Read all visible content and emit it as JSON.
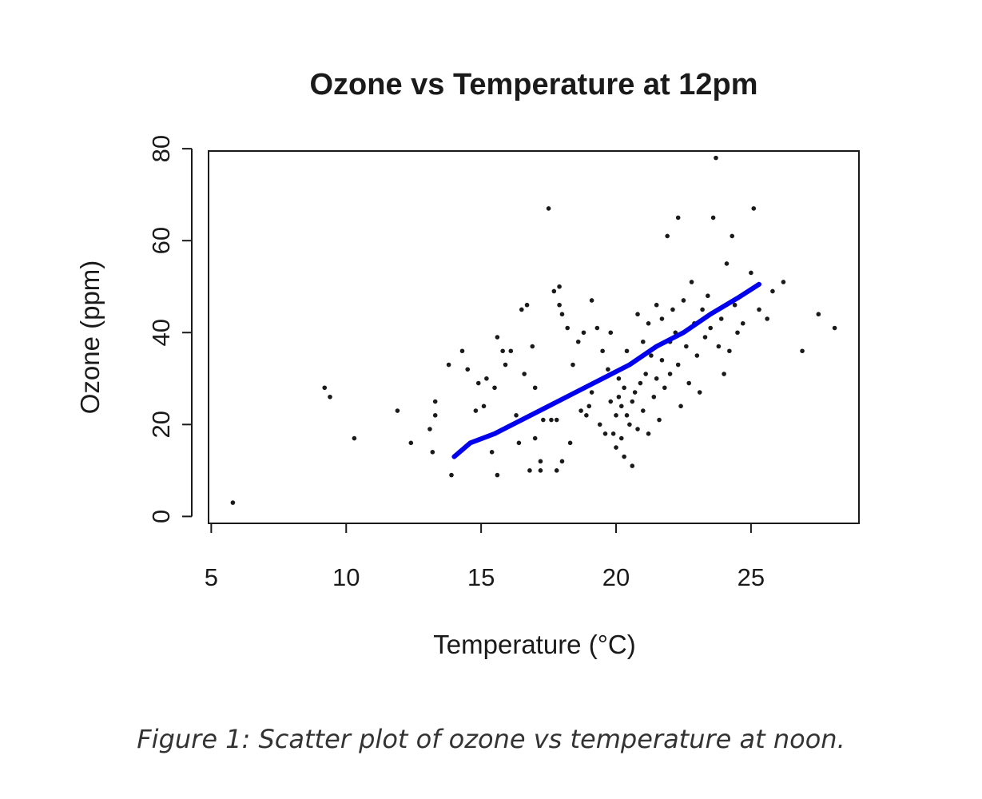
{
  "caption": "Figure 1: Scatter plot of ozone vs temperature at noon.",
  "colors": {
    "points": "#1a1a1a",
    "smooth": "#0000ee",
    "axes": "#1a1a1a"
  },
  "chart_data": {
    "type": "scatter",
    "title": "Ozone vs Temperature at 12pm",
    "xlabel": "Temperature (°C)",
    "ylabel": "Ozone (ppm)",
    "xlim": [
      4.9,
      29.0
    ],
    "ylim": [
      -1.5,
      79.5
    ],
    "xticks": [
      5,
      10,
      15,
      20,
      25
    ],
    "yticks": [
      0,
      20,
      40,
      60,
      80
    ],
    "grid": false,
    "series": [
      {
        "type": "points",
        "points": [
          [
            5.8,
            3
          ],
          [
            9.2,
            28
          ],
          [
            9.4,
            26
          ],
          [
            10.3,
            17
          ],
          [
            11.9,
            23
          ],
          [
            12.4,
            16
          ],
          [
            13.1,
            19
          ],
          [
            13.2,
            14
          ],
          [
            13.3,
            22
          ],
          [
            13.3,
            25
          ],
          [
            13.8,
            33
          ],
          [
            13.9,
            9
          ],
          [
            14.3,
            36
          ],
          [
            14.5,
            32
          ],
          [
            14.8,
            23
          ],
          [
            14.9,
            29
          ],
          [
            15.1,
            24
          ],
          [
            15.2,
            30
          ],
          [
            15.4,
            14
          ],
          [
            15.5,
            28
          ],
          [
            15.6,
            9
          ],
          [
            15.6,
            39
          ],
          [
            15.8,
            36
          ],
          [
            15.9,
            33
          ],
          [
            16.1,
            36
          ],
          [
            16.3,
            22
          ],
          [
            16.4,
            16
          ],
          [
            16.5,
            45
          ],
          [
            16.6,
            31
          ],
          [
            16.7,
            46
          ],
          [
            16.8,
            10
          ],
          [
            16.9,
            37
          ],
          [
            17.0,
            17
          ],
          [
            17.0,
            28
          ],
          [
            17.2,
            10
          ],
          [
            17.2,
            12
          ],
          [
            17.3,
            21
          ],
          [
            17.5,
            67
          ],
          [
            17.6,
            21
          ],
          [
            17.7,
            49
          ],
          [
            17.8,
            21
          ],
          [
            17.8,
            10
          ],
          [
            17.9,
            50
          ],
          [
            17.9,
            46
          ],
          [
            18.0,
            44
          ],
          [
            18.0,
            12
          ],
          [
            18.2,
            41
          ],
          [
            18.3,
            16
          ],
          [
            18.4,
            33
          ],
          [
            18.6,
            38
          ],
          [
            18.7,
            23
          ],
          [
            18.8,
            40
          ],
          [
            18.9,
            22
          ],
          [
            19.0,
            24
          ],
          [
            19.1,
            47
          ],
          [
            19.1,
            27
          ],
          [
            19.3,
            41
          ],
          [
            19.4,
            20
          ],
          [
            19.5,
            36
          ],
          [
            19.6,
            18
          ],
          [
            19.7,
            32
          ],
          [
            19.8,
            25
          ],
          [
            19.8,
            40
          ],
          [
            19.9,
            18
          ],
          [
            20.0,
            15
          ],
          [
            20.0,
            22
          ],
          [
            20.1,
            26
          ],
          [
            20.1,
            30
          ],
          [
            20.2,
            17
          ],
          [
            20.2,
            24
          ],
          [
            20.3,
            28
          ],
          [
            20.3,
            13
          ],
          [
            20.4,
            22
          ],
          [
            20.4,
            36
          ],
          [
            20.5,
            20
          ],
          [
            20.5,
            33
          ],
          [
            20.6,
            25
          ],
          [
            20.6,
            11
          ],
          [
            20.7,
            27
          ],
          [
            20.8,
            44
          ],
          [
            20.8,
            19
          ],
          [
            20.9,
            29
          ],
          [
            21.0,
            23
          ],
          [
            21.0,
            38
          ],
          [
            21.1,
            31
          ],
          [
            21.2,
            18
          ],
          [
            21.2,
            42
          ],
          [
            21.3,
            35
          ],
          [
            21.4,
            26
          ],
          [
            21.5,
            46
          ],
          [
            21.5,
            30
          ],
          [
            21.6,
            21
          ],
          [
            21.7,
            43
          ],
          [
            21.7,
            34
          ],
          [
            21.8,
            28
          ],
          [
            21.9,
            61
          ],
          [
            22.0,
            38
          ],
          [
            22.0,
            31
          ],
          [
            22.1,
            45
          ],
          [
            22.2,
            40
          ],
          [
            22.3,
            65
          ],
          [
            22.3,
            33
          ],
          [
            22.4,
            24
          ],
          [
            22.5,
            47
          ],
          [
            22.6,
            37
          ],
          [
            22.7,
            29
          ],
          [
            22.8,
            51
          ],
          [
            22.9,
            42
          ],
          [
            23.0,
            35
          ],
          [
            23.1,
            27
          ],
          [
            23.2,
            45
          ],
          [
            23.3,
            39
          ],
          [
            23.4,
            48
          ],
          [
            23.5,
            41
          ],
          [
            23.6,
            65
          ],
          [
            23.7,
            78
          ],
          [
            23.8,
            37
          ],
          [
            23.9,
            43
          ],
          [
            24.0,
            31
          ],
          [
            24.1,
            55
          ],
          [
            24.2,
            36
          ],
          [
            24.3,
            61
          ],
          [
            24.4,
            46
          ],
          [
            24.5,
            40
          ],
          [
            24.7,
            42
          ],
          [
            25.0,
            53
          ],
          [
            25.1,
            67
          ],
          [
            25.3,
            45
          ],
          [
            25.6,
            43
          ],
          [
            25.8,
            49
          ],
          [
            26.2,
            51
          ],
          [
            26.9,
            36
          ],
          [
            27.5,
            44
          ],
          [
            28.1,
            41
          ]
        ]
      },
      {
        "type": "line",
        "points": [
          [
            14.0,
            13
          ],
          [
            14.6,
            16
          ],
          [
            15.5,
            18
          ],
          [
            16.5,
            21
          ],
          [
            17.5,
            24
          ],
          [
            18.5,
            27
          ],
          [
            19.5,
            30
          ],
          [
            20.5,
            33
          ],
          [
            21.5,
            37
          ],
          [
            22.5,
            40
          ],
          [
            23.5,
            44
          ],
          [
            24.5,
            47.5
          ],
          [
            25.3,
            50.5
          ]
        ]
      }
    ]
  }
}
